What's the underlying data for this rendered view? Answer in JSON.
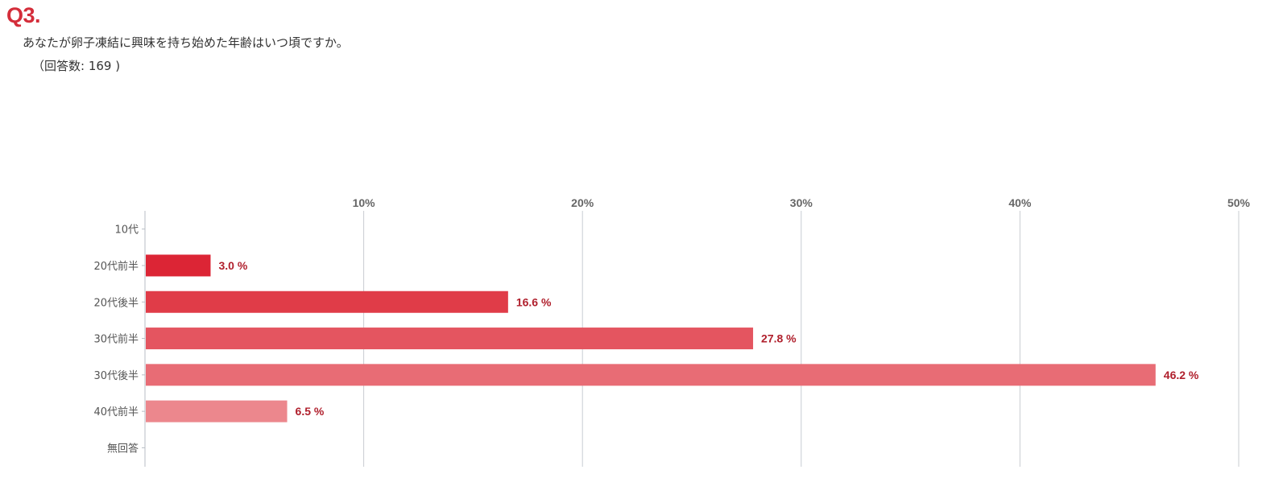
{
  "question": {
    "number": "Q3.",
    "text": "あなたが卵子凍結に興味を持ち始めた年齢はいつ頃ですか。",
    "responses": "（回答数: 169 )"
  },
  "chart_data": {
    "type": "bar",
    "orientation": "horizontal",
    "categories": [
      "10代",
      "20代前半",
      "20代後半",
      "30代前半",
      "30代後半",
      "40代前半",
      "無回答"
    ],
    "values": [
      null,
      3.0,
      16.6,
      27.8,
      46.2,
      6.5,
      null
    ],
    "value_labels": [
      "",
      "3.0 %",
      "16.6 %",
      "27.8 %",
      "46.2 %",
      "6.5 %",
      ""
    ],
    "xlim": [
      0,
      50
    ],
    "x_ticks": [
      10,
      20,
      30,
      40,
      50
    ],
    "x_tick_labels": [
      "10%",
      "20%",
      "30%",
      "40%",
      "50%"
    ],
    "x_axis_position": "top",
    "grid": true,
    "bar_colors": [
      "#dc2535",
      "#dc2535",
      "#e03c48",
      "#e45560",
      "#e86c75",
      "#ec878d",
      "#ec878d"
    ],
    "value_label_color": "#b0202d",
    "grid_color": "#c8ccd2"
  }
}
